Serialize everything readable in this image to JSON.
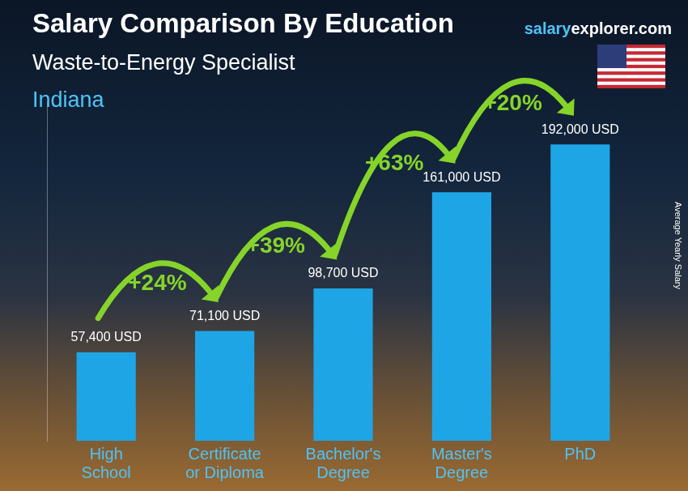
{
  "chart_data": {
    "type": "bar",
    "title": "Salary Comparison By Education",
    "subtitle": "Waste-to-Energy Specialist",
    "location": "Indiana",
    "source": "salaryexplorer.com",
    "ylabel": "Average Yearly Salary",
    "categories": [
      "High School",
      "Certificate or Diploma",
      "Bachelor's Degree",
      "Master's Degree",
      "PhD"
    ],
    "values": [
      57400,
      71100,
      98700,
      161000,
      192000
    ],
    "value_labels": [
      "57,400 USD",
      "71,100 USD",
      "98,700 USD",
      "161,000 USD",
      "192,000 USD"
    ],
    "annotations": [
      "+24%",
      "+39%",
      "+63%",
      "+20%"
    ],
    "color": "#1ea5e6",
    "ylim": [
      0,
      220000
    ],
    "grid": false,
    "data_labels": true,
    "tick_labels": "x"
  }
}
